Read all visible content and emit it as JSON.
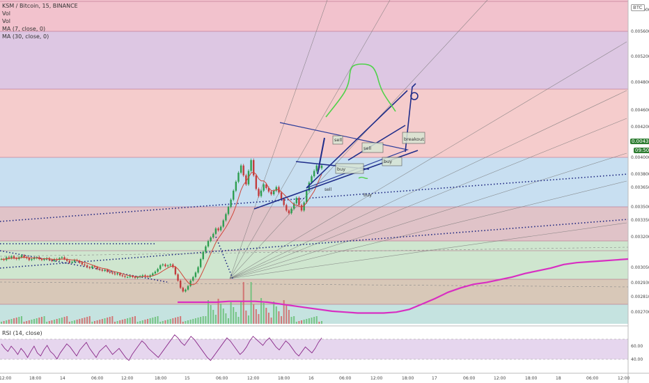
{
  "legend": {
    "title": "KSM / Bitcoin, 15, BINANCE",
    "vol1": "Vol",
    "vol2": "Vol",
    "ma7": "MA (7, close, 0)",
    "ma30": "MA (30, close, 0)"
  },
  "rsi_legend": "RSI (14, close)",
  "currency_badge": "BTC",
  "last_price_badge": "0.004373",
  "countdown_badge": "09:50",
  "colors": {
    "band_pink": "#f2c2cd",
    "band_purple": "#ddc7e3",
    "band_salmon": "#f5cccc",
    "band_blue": "#c8dff1",
    "band_mauve": "#e0c3c8",
    "band_green": "#cfe6cf",
    "band_tan": "#d8c8b8",
    "band_teal": "#c5e3e0",
    "candle_up": "#2e9e50",
    "candle_down": "#c23d3d",
    "magenta": "#d82ec2",
    "navy": "#1f2d8a",
    "green_draw": "#4fd24a",
    "rsi_line": "#8a2a8a"
  },
  "chart_data": {
    "type": "candlestick",
    "symbol": "KSM / Bitcoin, 15, BINANCE",
    "price_axis": {
      "ticks": [
        "0.006000",
        "0.005600",
        "0.005200",
        "0.004800",
        "0.004600",
        "0.004200",
        "0.004000",
        "0.003800",
        "0.003650",
        "0.003500",
        "0.003350",
        "0.003200",
        "0.003050",
        "0.002930",
        "0.002810",
        "0.002700"
      ],
      "ylim": [
        0.0027,
        0.0063
      ]
    },
    "time_axis": {
      "ticks": [
        "12:00",
        "18:00",
        "14",
        "06:00",
        "12:00",
        "18:00",
        "15",
        "06:00",
        "12:00",
        "18:00",
        "16",
        "06:00",
        "12:00",
        "18:00",
        "17",
        "06:00",
        "12:00",
        "18:00",
        "18",
        "06:00",
        "12:00"
      ]
    },
    "rsi_axis": {
      "ticks": [
        "60.00",
        "40.00"
      ],
      "ylim": [
        20,
        80
      ]
    },
    "close_series": [
      0.00342,
      0.00341,
      0.00344,
      0.00343,
      0.00345,
      0.00343,
      0.00342,
      0.00344,
      0.00346,
      0.00344,
      0.00343,
      0.00341,
      0.00342,
      0.00343,
      0.00344,
      0.00342,
      0.00341,
      0.00342,
      0.00343,
      0.00341,
      0.0034,
      0.00342,
      0.00341,
      0.00343,
      0.00344,
      0.00342,
      0.0034,
      0.00338,
      0.00339,
      0.00341,
      0.0034,
      0.00338,
      0.00336,
      0.00335,
      0.00333,
      0.00332,
      0.00334,
      0.00333,
      0.00331,
      0.0033,
      0.00329,
      0.0033,
      0.00328,
      0.00327,
      0.00326,
      0.00325,
      0.00326,
      0.00324,
      0.00323,
      0.00322,
      0.00322,
      0.00323,
      0.00322,
      0.00321,
      0.00322,
      0.00323,
      0.00324,
      0.00323,
      0.00322,
      0.00324,
      0.00326,
      0.00328,
      0.00331,
      0.00335,
      0.00336,
      0.00334,
      0.00335,
      0.00336,
      0.00333,
      0.00325,
      0.00318,
      0.0031,
      0.00306,
      0.00308,
      0.00312,
      0.00318,
      0.00322,
      0.00327,
      0.00333,
      0.00342,
      0.0035,
      0.00356,
      0.00362,
      0.00366,
      0.0037,
      0.00376,
      0.00374,
      0.00378,
      0.00385,
      0.00392,
      0.004,
      0.00408,
      0.00418,
      0.00428,
      0.00438,
      0.00446,
      0.00435,
      0.00425,
      0.0044,
      0.00452,
      0.00435,
      0.0042,
      0.00412,
      0.00418,
      0.00425,
      0.00421,
      0.00417,
      0.00414,
      0.00418,
      0.00422,
      0.00416,
      0.00409,
      0.00402,
      0.00396,
      0.00393,
      0.00398,
      0.00404,
      0.0041,
      0.00402,
      0.00396,
      0.00405,
      0.00418,
      0.00427,
      0.00434,
      0.0044,
      0.00446,
      0.00443,
      0.00446
    ],
    "ma30_series": [
      0.00294,
      0.00294,
      0.00294,
      0.00294,
      0.00295,
      0.00295,
      0.00295,
      0.00294,
      0.00292,
      0.0029,
      0.00288,
      0.00286,
      0.00284,
      0.00283,
      0.00282,
      0.00282,
      0.00282,
      0.00283,
      0.00286,
      0.00292,
      0.00298,
      0.00305,
      0.0031,
      0.00314,
      0.00316,
      0.00319,
      0.00322,
      0.00326,
      0.00329,
      0.00332,
      0.00336,
      0.00338,
      0.00339,
      0.0034,
      0.00341,
      0.00342
    ],
    "rsi_series": [
      58,
      52,
      48,
      55,
      50,
      44,
      52,
      47,
      40,
      48,
      55,
      46,
      42,
      50,
      56,
      48,
      44,
      38,
      46,
      52,
      58,
      54,
      48,
      42,
      50,
      55,
      60,
      52,
      46,
      40,
      48,
      52,
      56,
      50,
      44,
      48,
      52,
      46,
      40,
      36,
      44,
      50,
      56,
      62,
      58,
      52,
      48,
      44,
      40,
      46,
      52,
      58,
      64,
      70,
      66,
      60,
      56,
      62,
      68,
      64,
      58,
      52,
      46,
      40,
      36,
      42,
      48,
      54,
      60,
      66,
      62,
      56,
      50,
      44,
      48,
      54,
      62,
      68,
      64,
      60,
      56,
      62,
      66,
      60,
      54,
      50,
      56,
      62,
      58,
      52,
      46,
      42,
      48,
      54,
      50,
      46,
      52,
      60,
      66
    ],
    "annotations": [
      "sell",
      "sell",
      "buy",
      "buy",
      "breakout",
      "buy",
      "sell"
    ]
  }
}
